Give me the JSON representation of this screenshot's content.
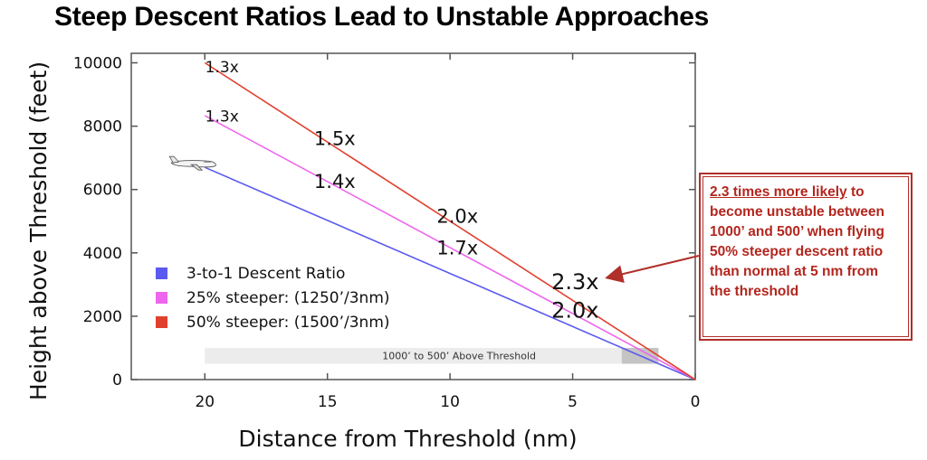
{
  "title": "Steep Descent Ratios Lead to Unstable Approaches",
  "chart_data": {
    "type": "line",
    "xlabel": "Distance from Threshold (nm)",
    "ylabel": "Height above Threshold (feet)",
    "x_reversed": true,
    "xlim": [
      23,
      0
    ],
    "ylim": [
      0,
      10300
    ],
    "x_ticks": [
      "20",
      "15",
      "10",
      "5",
      "0"
    ],
    "y_ticks": [
      "0",
      "2000",
      "4000",
      "6000",
      "8000",
      "10000"
    ],
    "series": [
      {
        "name": "3-to-1 Descent Ratio",
        "color": "#5a5af0",
        "x": [
          20,
          0
        ],
        "y": [
          6700,
          0
        ]
      },
      {
        "name": "25% steeper: (1250’/3nm)",
        "color": "#ee66ee",
        "x": [
          20,
          0
        ],
        "y": [
          8333,
          0
        ]
      },
      {
        "name": "50% steeper: (1500’/3nm)",
        "color": "#e0402e",
        "x": [
          20,
          0
        ],
        "y": [
          10000,
          0
        ]
      }
    ],
    "legend_position": "bottom-left",
    "band": {
      "label": "1000’ to 500’ Above Threshold",
      "y0": 500,
      "y1": 1000
    },
    "annotations": [
      {
        "text": "1.3x",
        "x": 19.3,
        "y": 9700
      },
      {
        "text": "1.3x",
        "x": 19.3,
        "y": 8150
      },
      {
        "text": "1.5x",
        "x": 14.7,
        "y": 7400
      },
      {
        "text": "1.4x",
        "x": 14.7,
        "y": 6050
      },
      {
        "text": "2.0x",
        "x": 9.7,
        "y": 4950
      },
      {
        "text": "1.7x",
        "x": 9.7,
        "y": 3950
      },
      {
        "text": "2.3x",
        "x": 4.9,
        "y": 2850
      },
      {
        "text": "2.0x",
        "x": 4.9,
        "y": 1950
      }
    ]
  },
  "callout": {
    "highlight": "2.3 times more likely",
    "text": " to become unstable between 1000’ and 500’ when flying 50% steeper descent ratio than normal at 5 nm from the threshold"
  }
}
